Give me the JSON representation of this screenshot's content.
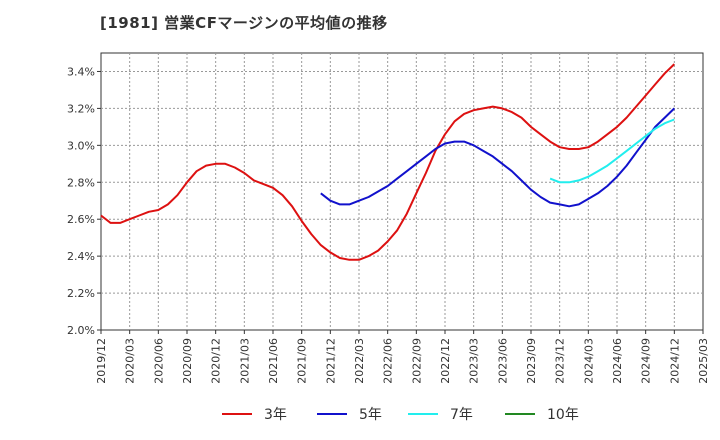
{
  "title": "[1981]  営業CFマージンの平均値の推移",
  "chart_data": {
    "type": "line",
    "title": "[1981]  営業CFマージンの平均値の推移",
    "xlabel": "",
    "ylabel": "",
    "ylim": [
      0.02,
      0.035
    ],
    "y_ticks": [
      "2.0%",
      "2.2%",
      "2.4%",
      "2.6%",
      "2.8%",
      "3.0%",
      "3.2%",
      "3.4%"
    ],
    "x_ticks": [
      "2019/12",
      "2020/03",
      "2020/06",
      "2020/09",
      "2020/12",
      "2021/03",
      "2021/06",
      "2021/09",
      "2021/12",
      "2022/03",
      "2022/06",
      "2022/09",
      "2022/12",
      "2023/03",
      "2023/06",
      "2023/09",
      "2023/12",
      "2024/03",
      "2024/06",
      "2024/09",
      "2024/12",
      "2025/03"
    ],
    "grid": true,
    "legend_position": "bottom",
    "series": [
      {
        "name": "3年",
        "color": "#dd1111",
        "points": [
          [
            "2019/12",
            0.0262
          ],
          [
            "2020/01",
            0.0258
          ],
          [
            "2020/02",
            0.0258
          ],
          [
            "2020/03",
            0.026
          ],
          [
            "2020/04",
            0.0262
          ],
          [
            "2020/05",
            0.0264
          ],
          [
            "2020/06",
            0.0265
          ],
          [
            "2020/07",
            0.0268
          ],
          [
            "2020/08",
            0.0273
          ],
          [
            "2020/09",
            0.028
          ],
          [
            "2020/10",
            0.0286
          ],
          [
            "2020/11",
            0.0289
          ],
          [
            "2020/12",
            0.029
          ],
          [
            "2021/01",
            0.029
          ],
          [
            "2021/02",
            0.0288
          ],
          [
            "2021/03",
            0.0285
          ],
          [
            "2021/04",
            0.0281
          ],
          [
            "2021/05",
            0.0279
          ],
          [
            "2021/06",
            0.0277
          ],
          [
            "2021/07",
            0.0273
          ],
          [
            "2021/08",
            0.0267
          ],
          [
            "2021/09",
            0.0259
          ],
          [
            "2021/10",
            0.0252
          ],
          [
            "2021/11",
            0.0246
          ],
          [
            "2021/12",
            0.0242
          ],
          [
            "2022/01",
            0.0239
          ],
          [
            "2022/02",
            0.0238
          ],
          [
            "2022/03",
            0.0238
          ],
          [
            "2022/04",
            0.024
          ],
          [
            "2022/05",
            0.0243
          ],
          [
            "2022/06",
            0.0248
          ],
          [
            "2022/07",
            0.0254
          ],
          [
            "2022/08",
            0.0263
          ],
          [
            "2022/09",
            0.0274
          ],
          [
            "2022/10",
            0.0285
          ],
          [
            "2022/11",
            0.0297
          ],
          [
            "2022/12",
            0.0306
          ],
          [
            "2023/01",
            0.0313
          ],
          [
            "2023/02",
            0.0317
          ],
          [
            "2023/03",
            0.0319
          ],
          [
            "2023/04",
            0.032
          ],
          [
            "2023/05",
            0.0321
          ],
          [
            "2023/06",
            0.032
          ],
          [
            "2023/07",
            0.0318
          ],
          [
            "2023/08",
            0.0315
          ],
          [
            "2023/09",
            0.031
          ],
          [
            "2023/10",
            0.0306
          ],
          [
            "2023/11",
            0.0302
          ],
          [
            "2023/12",
            0.0299
          ],
          [
            "2024/01",
            0.0298
          ],
          [
            "2024/02",
            0.0298
          ],
          [
            "2024/03",
            0.0299
          ],
          [
            "2024/04",
            0.0302
          ],
          [
            "2024/05",
            0.0306
          ],
          [
            "2024/06",
            0.031
          ],
          [
            "2024/07",
            0.0315
          ],
          [
            "2024/08",
            0.0321
          ],
          [
            "2024/09",
            0.0327
          ],
          [
            "2024/10",
            0.0333
          ],
          [
            "2024/11",
            0.0339
          ],
          [
            "2024/12",
            0.0344
          ]
        ]
      },
      {
        "name": "5年",
        "color": "#1111cc",
        "points": [
          [
            "2021/11",
            0.0274
          ],
          [
            "2021/12",
            0.027
          ],
          [
            "2022/01",
            0.0268
          ],
          [
            "2022/02",
            0.0268
          ],
          [
            "2022/03",
            0.027
          ],
          [
            "2022/04",
            0.0272
          ],
          [
            "2022/05",
            0.0275
          ],
          [
            "2022/06",
            0.0278
          ],
          [
            "2022/07",
            0.0282
          ],
          [
            "2022/08",
            0.0286
          ],
          [
            "2022/09",
            0.029
          ],
          [
            "2022/10",
            0.0294
          ],
          [
            "2022/11",
            0.0298
          ],
          [
            "2022/12",
            0.0301
          ],
          [
            "2023/01",
            0.0302
          ],
          [
            "2023/02",
            0.0302
          ],
          [
            "2023/03",
            0.03
          ],
          [
            "2023/04",
            0.0297
          ],
          [
            "2023/05",
            0.0294
          ],
          [
            "2023/06",
            0.029
          ],
          [
            "2023/07",
            0.0286
          ],
          [
            "2023/08",
            0.0281
          ],
          [
            "2023/09",
            0.0276
          ],
          [
            "2023/10",
            0.0272
          ],
          [
            "2023/11",
            0.0269
          ],
          [
            "2023/12",
            0.0268
          ],
          [
            "2024/01",
            0.0267
          ],
          [
            "2024/02",
            0.0268
          ],
          [
            "2024/03",
            0.0271
          ],
          [
            "2024/04",
            0.0274
          ],
          [
            "2024/05",
            0.0278
          ],
          [
            "2024/06",
            0.0283
          ],
          [
            "2024/07",
            0.0289
          ],
          [
            "2024/08",
            0.0296
          ],
          [
            "2024/09",
            0.0303
          ],
          [
            "2024/10",
            0.031
          ],
          [
            "2024/11",
            0.0315
          ],
          [
            "2024/12",
            0.032
          ]
        ]
      },
      {
        "name": "7年",
        "color": "#22eeee",
        "points": [
          [
            "2023/11",
            0.0282
          ],
          [
            "2023/12",
            0.028
          ],
          [
            "2024/01",
            0.028
          ],
          [
            "2024/02",
            0.0281
          ],
          [
            "2024/03",
            0.0283
          ],
          [
            "2024/04",
            0.0286
          ],
          [
            "2024/05",
            0.0289
          ],
          [
            "2024/06",
            0.0293
          ],
          [
            "2024/07",
            0.0297
          ],
          [
            "2024/08",
            0.0301
          ],
          [
            "2024/09",
            0.0305
          ],
          [
            "2024/10",
            0.0309
          ],
          [
            "2024/11",
            0.0312
          ],
          [
            "2024/12",
            0.0314
          ]
        ]
      },
      {
        "name": "10年",
        "color": "#228822",
        "points": []
      }
    ]
  }
}
